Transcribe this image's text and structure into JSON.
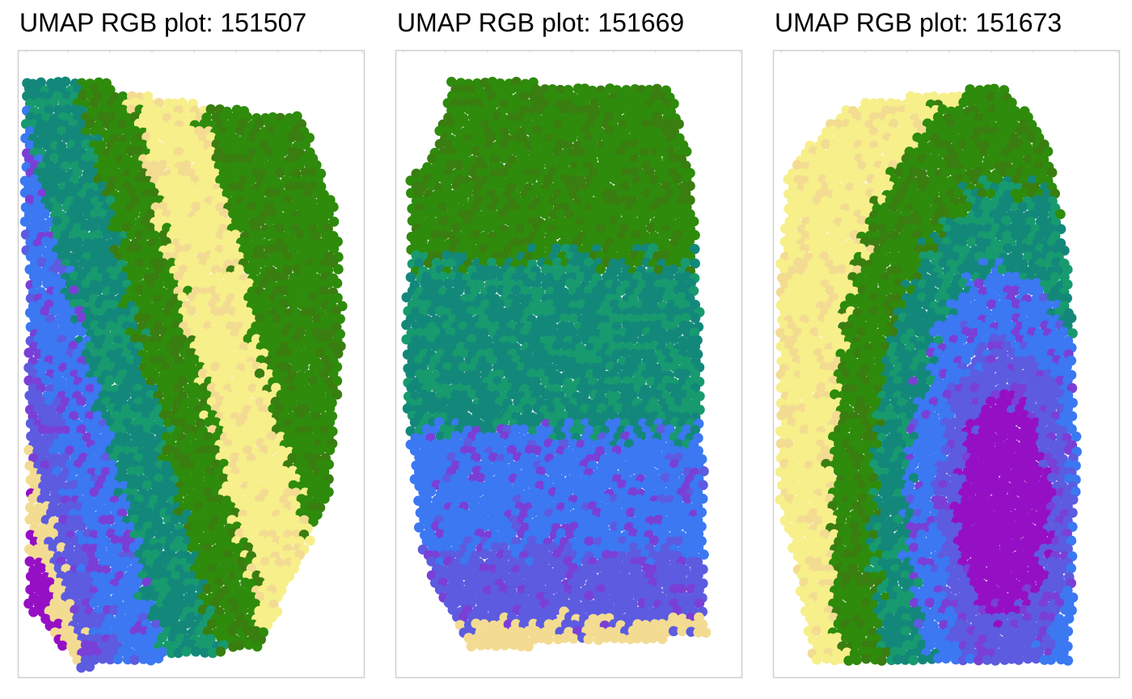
{
  "figure": {
    "panels": [
      {
        "title": "UMAP RGB plot: 151507"
      },
      {
        "title": "UMAP RGB plot: 151669"
      },
      {
        "title": "UMAP RGB plot: 151673"
      }
    ]
  },
  "chart_data": [
    {
      "type": "scatter",
      "title": "UMAP RGB plot: 151507",
      "xlabel": "",
      "ylabel": "",
      "grid": false,
      "palette": {
        "yellow": "#f6ef8a",
        "tan": "#f3dc92",
        "green": "#2e8b0c",
        "darkgreen": "#3a7d10",
        "teal": "#13887a",
        "seagreen": "#189a6f",
        "blue": "#3b78f2",
        "periwinkle": "#5d5be0",
        "violet": "#7a3fd6",
        "purple": "#9510c4"
      },
      "regions": {
        "outline": [
          [
            0.02,
            0.04
          ],
          [
            0.26,
            0.04
          ],
          [
            0.3,
            0.06
          ],
          [
            0.82,
            0.1
          ],
          [
            0.92,
            0.25
          ],
          [
            0.94,
            0.45
          ],
          [
            0.9,
            0.7
          ],
          [
            0.7,
            0.94
          ],
          [
            0.18,
            0.97
          ],
          [
            0.03,
            0.87
          ]
        ],
        "band_axis": {
          "start": [
            0.1,
            0.02
          ],
          "end": [
            0.55,
            1.0
          ]
        },
        "bands": [
          {
            "color": "green",
            "offset": -0.95,
            "width": 0.18
          },
          {
            "color": "yellow",
            "offset": -0.6,
            "width": 0.28
          },
          {
            "color": "green",
            "offset": -0.25,
            "width": 0.22
          },
          {
            "color": "teal",
            "offset": 0.05,
            "width": 0.3
          },
          {
            "color": "blue",
            "offset": 0.38,
            "width": 0.26
          },
          {
            "color": "periwinkle",
            "offset": 0.6,
            "width": 0.16
          },
          {
            "color": "tan",
            "offset": 0.74,
            "width": 0.1
          },
          {
            "color": "purple",
            "offset": 0.86,
            "width": 0.14
          }
        ]
      }
    },
    {
      "type": "scatter",
      "title": "UMAP RGB plot: 151669",
      "xlabel": "",
      "ylabel": "",
      "grid": false,
      "palette": {
        "yellow": "#f6ef8a",
        "tan": "#f3dc92",
        "green": "#2e8b0c",
        "darkgreen": "#3a7d10",
        "teal": "#13887a",
        "seagreen": "#189a6f",
        "blue": "#3b78f2",
        "periwinkle": "#5d5be0",
        "violet": "#7a3fd6",
        "purple": "#9510c4"
      },
      "regions": {
        "outline": [
          [
            0.16,
            0.04
          ],
          [
            0.8,
            0.05
          ],
          [
            0.86,
            0.2
          ],
          [
            0.88,
            0.45
          ],
          [
            0.9,
            0.92
          ],
          [
            0.22,
            0.94
          ],
          [
            0.08,
            0.8
          ],
          [
            0.03,
            0.55
          ],
          [
            0.04,
            0.2
          ],
          [
            0.12,
            0.14
          ]
        ],
        "band_axis": {
          "start": [
            0.05,
            0.5
          ],
          "end": [
            0.95,
            0.5
          ]
        },
        "bands": [
          {
            "color": "green",
            "offset": -0.75,
            "width": 0.42
          },
          {
            "color": "teal",
            "offset": -0.05,
            "width": 0.35
          },
          {
            "color": "blue",
            "offset": 0.45,
            "width": 0.32
          },
          {
            "color": "periwinkle",
            "offset": 0.75,
            "width": 0.2
          },
          {
            "color": "tan",
            "offset": 0.95,
            "width": 0.08
          }
        ]
      }
    },
    {
      "type": "scatter",
      "title": "UMAP RGB plot: 151673",
      "xlabel": "",
      "ylabel": "",
      "grid": false,
      "palette": {
        "yellow": "#f6ef8a",
        "tan": "#f3dc92",
        "green": "#2e8b0c",
        "darkgreen": "#3a7d10",
        "teal": "#13887a",
        "seagreen": "#189a6f",
        "blue": "#3b78f2",
        "periwinkle": "#5d5be0",
        "violet": "#7a3fd6",
        "purple": "#9510c4"
      },
      "regions": {
        "outline": [
          [
            0.05,
            0.17
          ],
          [
            0.22,
            0.08
          ],
          [
            0.45,
            0.06
          ],
          [
            0.68,
            0.05
          ],
          [
            0.8,
            0.15
          ],
          [
            0.86,
            0.35
          ],
          [
            0.88,
            0.65
          ],
          [
            0.86,
            0.96
          ],
          [
            0.4,
            0.96
          ],
          [
            0.12,
            0.96
          ],
          [
            0.02,
            0.7
          ],
          [
            0.02,
            0.35
          ]
        ],
        "rings": {
          "center": [
            0.67,
            0.72
          ],
          "layers": [
            {
              "color": "yellow",
              "radius": 1.0
            },
            {
              "color": "green",
              "radius": 0.78
            },
            {
              "color": "teal",
              "radius": 0.58
            },
            {
              "color": "blue",
              "radius": 0.43
            },
            {
              "color": "periwinkle",
              "radius": 0.3
            },
            {
              "color": "purple",
              "radius": 0.2
            }
          ]
        }
      }
    }
  ]
}
